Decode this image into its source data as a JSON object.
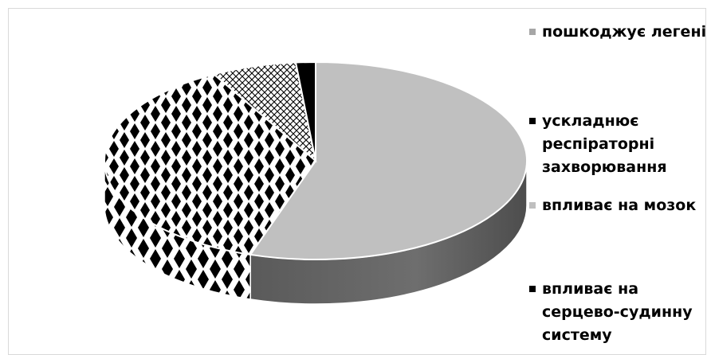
{
  "chart_data": {
    "type": "pie",
    "title": "",
    "three_d": true,
    "legend_position": "right",
    "slices": [
      {
        "label": "пошкоджує легені",
        "value": 55,
        "color": "#c0c0c0",
        "pattern": "solid-gray"
      },
      {
        "label": "ускладнює респіраторні захворювання",
        "value": 37,
        "color": "#000000",
        "pattern": "large-checker-diamond"
      },
      {
        "label": "впливає на мозок",
        "value": 6.5,
        "color": "#ffffff",
        "pattern": "small-cross-hatch"
      },
      {
        "label": "впливає на серцево-судинну систему",
        "value": 1.5,
        "color": "#000000",
        "pattern": "solid-black"
      }
    ]
  },
  "legend": {
    "items": [
      {
        "label": "пошкоджує легені",
        "marker_color": "#a6a6a6"
      },
      {
        "label": "ускладнює респіраторні захворювання",
        "marker_color": "#000000"
      },
      {
        "label": "впливає на мозок",
        "marker_color": "#bfbfbf"
      },
      {
        "label": "впливає на серцево-судинну систему",
        "marker_color": "#000000"
      }
    ]
  }
}
